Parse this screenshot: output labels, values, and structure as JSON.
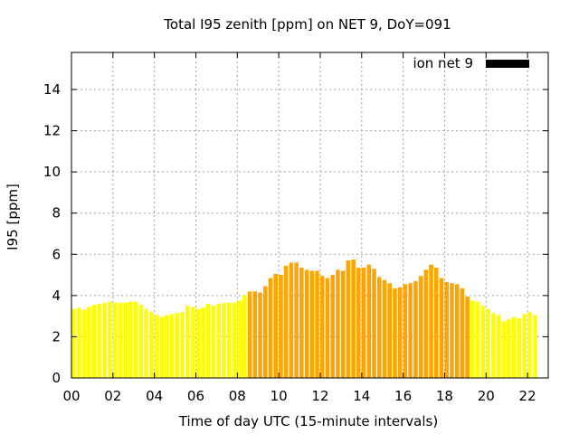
{
  "chart_data": {
    "type": "bar",
    "title": "Total I95 zenith [ppm] on NET 9, DoY=091",
    "xlabel": "Time of day UTC (15-minute intervals)",
    "ylabel": "I95 [ppm]",
    "xlim": [
      0,
      23
    ],
    "ylim": [
      0,
      15.8
    ],
    "x_ticks": [
      0,
      2,
      4,
      6,
      8,
      10,
      12,
      14,
      16,
      18,
      20,
      22
    ],
    "x_tick_labels": [
      "00",
      "02",
      "04",
      "06",
      "08",
      "10",
      "12",
      "14",
      "16",
      "18",
      "20",
      "22"
    ],
    "y_ticks": [
      0,
      2,
      4,
      6,
      8,
      10,
      12,
      14
    ],
    "y_tick_labels": [
      "0",
      "2",
      "4",
      "6",
      "8",
      "10",
      "12",
      "14"
    ],
    "grid": true,
    "legend_position": "top-right",
    "legend": [
      {
        "label": "ion net 9",
        "color": "#000000"
      }
    ],
    "interval_hours": 0.25,
    "colors": {
      "low": "#ffff00",
      "high": "#ffa500",
      "grid": "#a0a0a0",
      "axis": "#000000"
    },
    "high_range_hours": [
      8.5,
      19.25
    ],
    "values": [
      3.35,
      3.4,
      3.3,
      3.45,
      3.55,
      3.6,
      3.65,
      3.7,
      3.65,
      3.65,
      3.65,
      3.7,
      3.7,
      3.55,
      3.35,
      3.2,
      3.05,
      2.95,
      3.05,
      3.1,
      3.15,
      3.2,
      3.5,
      3.45,
      3.35,
      3.4,
      3.6,
      3.5,
      3.6,
      3.65,
      3.65,
      3.65,
      3.75,
      4.0,
      4.2,
      4.2,
      4.15,
      4.45,
      4.85,
      5.05,
      5.0,
      5.45,
      5.6,
      5.6,
      5.35,
      5.25,
      5.2,
      5.2,
      4.95,
      4.85,
      5.0,
      5.25,
      5.2,
      5.7,
      5.75,
      5.35,
      5.35,
      5.5,
      5.3,
      4.9,
      4.75,
      4.6,
      4.35,
      4.4,
      4.55,
      4.6,
      4.7,
      4.95,
      5.25,
      5.5,
      5.35,
      4.85,
      4.65,
      4.6,
      4.55,
      4.35,
      3.95,
      3.75,
      3.7,
      3.5,
      3.35,
      3.15,
      3.05,
      2.75,
      2.85,
      2.95,
      2.9,
      3.1,
      3.2,
      3.05
    ]
  }
}
